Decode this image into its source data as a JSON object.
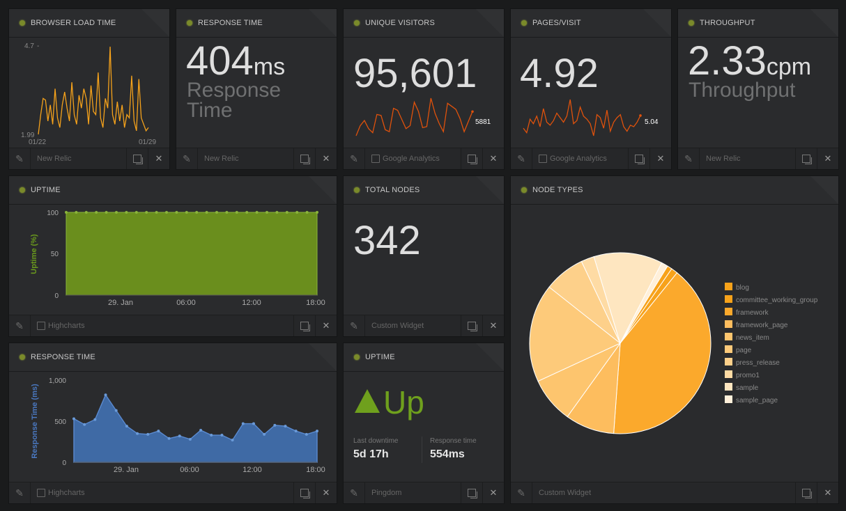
{
  "widgets": {
    "browser_load": {
      "title": "BROWSER LOAD TIME",
      "source": "New Relic",
      "y_max_label": "4.7",
      "y_min_label": "1.99",
      "x_start_label": "01/22",
      "x_end_label": "01/29",
      "color": "#f5a21b"
    },
    "response_time_top": {
      "title": "RESPONSE TIME",
      "value": "404",
      "unit": "ms",
      "subtitle_line1": "Response",
      "subtitle_line2": "Time",
      "source": "New Relic"
    },
    "unique_visitors": {
      "title": "UNIQUE VISITORS",
      "value": "95,601",
      "last_value": "5881",
      "source": "Google Analytics",
      "color": "#e0520c"
    },
    "pages_visit": {
      "title": "PAGES/VISIT",
      "value": "4.92",
      "last_value": "5.04",
      "source": "Google Analytics",
      "color": "#e0520c"
    },
    "throughput": {
      "title": "THROUGHPUT",
      "value": "2.33",
      "unit": "cpm",
      "subtitle": "Throughput",
      "source": "New Relic"
    },
    "uptime_chart": {
      "title": "UPTIME",
      "source": "Highcharts",
      "ylabel": "Uptime (%)",
      "y_ticks": [
        "100",
        "50",
        "0"
      ],
      "x_ticks": [
        "29. Jan",
        "06:00",
        "12:00",
        "18:00"
      ],
      "color": "#6a8e1d"
    },
    "total_nodes": {
      "title": "TOTAL NODES",
      "value": "342",
      "source": "Custom Widget"
    },
    "node_types": {
      "title": "NODE TYPES",
      "source": "Custom Widget"
    },
    "response_time_chart": {
      "title": "RESPONSE TIME",
      "source": "Highcharts",
      "ylabel": "Response Time (ms)",
      "y_ticks": [
        "1,000",
        "500",
        "0"
      ],
      "x_ticks": [
        "29. Jan",
        "06:00",
        "12:00",
        "18:00"
      ],
      "color": "#3f6aa5"
    },
    "uptime_status": {
      "title": "UPTIME",
      "status": "Up",
      "last_downtime_label": "Last downtime",
      "last_downtime_value": "5d 17h",
      "response_time_label": "Response time",
      "response_time_value": "554ms",
      "source": "Pingdom",
      "color": "#6fa01d"
    }
  },
  "chart_data": [
    {
      "type": "line",
      "name": "browser_load",
      "values": [
        1.99,
        2.6,
        3.1,
        3.05,
        2.4,
        2.9,
        2.3,
        3.4,
        2.5,
        2.2,
        2.9,
        3.3,
        2.8,
        2.4,
        3.6,
        2.6,
        2.3,
        3.2,
        2.8,
        3.4,
        3.1,
        2.3,
        3.5,
        2.7,
        2.6,
        3.9,
        2.5,
        2.2,
        3.1,
        2.8,
        4.7,
        2.6,
        2.3,
        3.0,
        2.4,
        2.9,
        2.2,
        2.6,
        2.5,
        3.8,
        2.4,
        2.1,
        3.7,
        2.5,
        2.3,
        2.1,
        2.2
      ]
    },
    {
      "type": "line",
      "name": "unique_visitors",
      "values": [
        3500,
        4500,
        5000,
        4200,
        3800,
        5600,
        5500,
        4100,
        3900,
        6200,
        6000,
        5100,
        4200,
        4500,
        6800,
        5900,
        4300,
        4400,
        7200,
        5700,
        4700,
        3900,
        6700,
        6400,
        6100,
        5200,
        3900,
        4900,
        5881
      ]
    },
    {
      "type": "line",
      "name": "pages_visit",
      "values": [
        4.2,
        3.9,
        4.8,
        4.5,
        5.0,
        4.3,
        5.5,
        4.6,
        4.4,
        4.7,
        5.2,
        4.9,
        4.6,
        5.0,
        6.1,
        4.5,
        4.7,
        5.6,
        5.0,
        4.8,
        4.5,
        3.7,
        5.1,
        4.9,
        4.2,
        5.4,
        4.0,
        4.6,
        4.9,
        5.1,
        4.3,
        4.0,
        4.4,
        4.3,
        4.6,
        5.04
      ]
    },
    {
      "type": "area",
      "name": "uptime",
      "ylim": [
        0,
        100
      ],
      "values": [
        100,
        100,
        100,
        100,
        100,
        100,
        100,
        100,
        100,
        100,
        100,
        100,
        100,
        100,
        100,
        100,
        100,
        100,
        100,
        100,
        100,
        100,
        100,
        100,
        100,
        100
      ]
    },
    {
      "type": "area",
      "name": "response_time",
      "ylim": [
        0,
        1000
      ],
      "values": [
        530,
        460,
        520,
        820,
        630,
        440,
        350,
        340,
        380,
        290,
        320,
        280,
        390,
        330,
        330,
        270,
        470,
        470,
        340,
        450,
        440,
        380,
        340,
        380
      ]
    },
    {
      "type": "pie",
      "name": "node_types",
      "legend": [
        "blog",
        "committee_working_group",
        "framework",
        "framework_page",
        "news_item",
        "page",
        "press_release",
        "promo1",
        "sample",
        "sample_page"
      ],
      "values": [
        3,
        4,
        138,
        30,
        28,
        60,
        25,
        8,
        42,
        4
      ],
      "colors": [
        "#f7a21a",
        "#f7a21a",
        "#fba92c",
        "#fdbd5e",
        "#fdc56e",
        "#fdca7a",
        "#fdd08a",
        "#fedba4",
        "#fee6c0",
        "#fff0da"
      ]
    }
  ]
}
